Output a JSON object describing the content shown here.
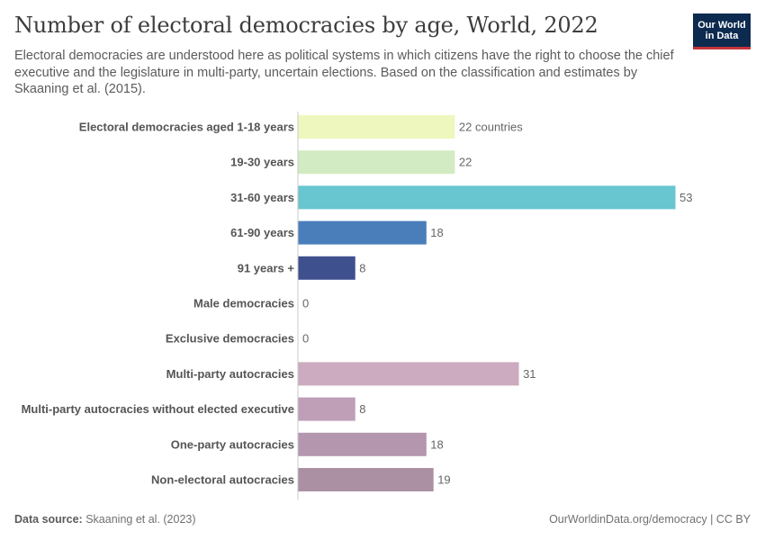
{
  "header": {
    "title": "Number of electoral democracies by age, World, 2022",
    "subtitle": "Electoral democracies are understood here as political systems in which citizens have the right to choose the chief executive and the legislature in multi-party, uncertain elections. Based on the classification and estimates by Skaaning et al. (2015).",
    "logo_line1": "Our World",
    "logo_line2": "in Data"
  },
  "footer": {
    "source_label": "Data source:",
    "source_value": "Skaaning et al. (2023)",
    "url": "OurWorldinData.org/democracy | CC BY"
  },
  "chart_data": {
    "type": "bar",
    "orientation": "horizontal",
    "title": "Number of electoral democracies by age, World, 2022",
    "xlabel": "",
    "ylabel": "",
    "xlim": [
      0,
      53
    ],
    "value_unit_suffix_first": " countries",
    "categories": [
      "Electoral democracies aged 1-18 years",
      "19-30 years",
      "31-60 years",
      "61-90 years",
      "91 years +",
      "Male democracies",
      "Exclusive democracies",
      "Multi-party autocracies",
      "Multi-party autocracies without elected executive",
      "One-party autocracies",
      "Non-electoral autocracies"
    ],
    "values": [
      22,
      22,
      53,
      18,
      8,
      0,
      0,
      31,
      8,
      18,
      19
    ],
    "value_labels": [
      "22 countries",
      "22",
      "53",
      "18",
      "8",
      "0",
      "0",
      "31",
      "8",
      "18",
      "19"
    ],
    "colors": [
      "#eef7bd",
      "#d3ebc2",
      "#67c6cf",
      "#4a7eba",
      "#3f508f",
      "#e8e2ec",
      "#e8e2ec",
      "#ccaabf",
      "#bf9eb7",
      "#b496ae",
      "#ab90a4"
    ]
  }
}
